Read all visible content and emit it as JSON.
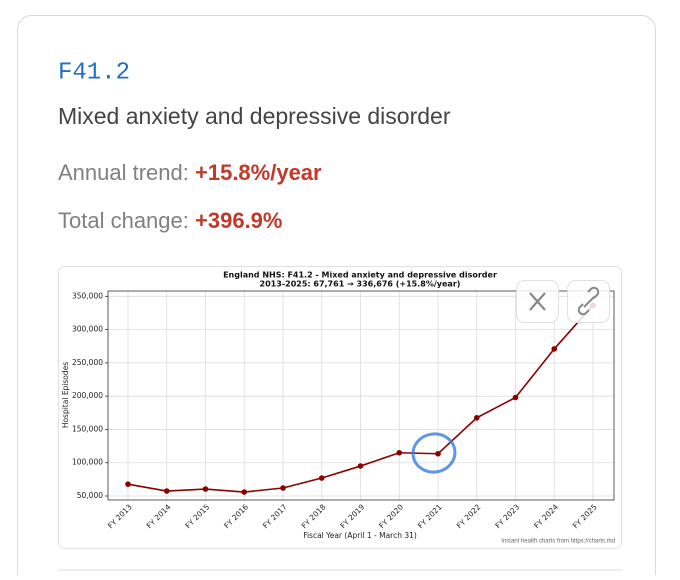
{
  "card": {
    "code": "F41.2",
    "name": "Mixed anxiety and depressive disorder",
    "trend_label": "Annual trend:",
    "trend_value": "+15.8%/year",
    "change_label": "Total change:",
    "change_value": "+396.9%"
  },
  "chart_data": {
    "type": "line",
    "title": "England NHS: F41.2 - Mixed anxiety and depressive disorder",
    "subtitle": "2013-2025: 67,761 → 336,676 (+15.8%/year)",
    "x_label": "Fiscal Year (April 1 - March 31)",
    "y_label": "Hospital Episodes",
    "footnote": "Instant health charts from https://charts.md",
    "categories": [
      "FY 2013",
      "FY 2014",
      "FY 2015",
      "FY 2016",
      "FY 2017",
      "FY 2018",
      "FY 2019",
      "FY 2020",
      "FY 2021",
      "FY 2022",
      "FY 2023",
      "FY 2024",
      "FY 2025"
    ],
    "values": [
      67761,
      57500,
      60500,
      56000,
      62000,
      77000,
      95000,
      115000,
      113500,
      167500,
      198000,
      271000,
      336676
    ],
    "color": "#8b0000",
    "ylim": [
      44000,
      358000
    ],
    "yticks": [
      {
        "value": 50000,
        "label": "50,000"
      },
      {
        "value": 100000,
        "label": "100,000"
      },
      {
        "value": 150000,
        "label": "150,000"
      },
      {
        "value": 200000,
        "label": "200,000"
      },
      {
        "value": 250000,
        "label": "250,000"
      },
      {
        "value": 300000,
        "label": "300,000"
      },
      {
        "value": 350000,
        "label": "350,000"
      }
    ],
    "grid": true
  }
}
